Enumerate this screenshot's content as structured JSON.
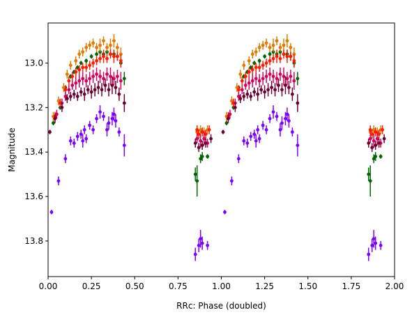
{
  "chart_data": {
    "type": "scatter",
    "title": "",
    "xlabel": "RRc: Phase (doubled)",
    "ylabel": "Magnitude",
    "xlim": [
      0.0,
      2.0
    ],
    "ylim": [
      13.96,
      12.82
    ],
    "y_inverted": true,
    "x_ticks": [
      0.0,
      0.25,
      0.5,
      0.75,
      1.0,
      1.25,
      1.5,
      1.75,
      2.0
    ],
    "x_tick_labels": [
      "0.00",
      "0.25",
      "0.50",
      "0.75",
      "1.00",
      "1.25",
      "1.50",
      "1.75",
      "2.00"
    ],
    "y_ticks": [
      13.0,
      13.2,
      13.4,
      13.6,
      13.8
    ],
    "y_tick_labels": [
      "13.0",
      "13.2",
      "13.4",
      "13.6",
      "13.8"
    ],
    "grid": false,
    "legend": false,
    "period_repeat": 1.0,
    "series": [
      {
        "color": "#7b00ff",
        "points": [
          [
            0.02,
            13.67,
            0.01
          ],
          [
            0.06,
            13.53,
            0.02
          ],
          [
            0.1,
            13.43,
            0.02
          ],
          [
            0.13,
            13.35,
            0.02
          ],
          [
            0.15,
            13.36,
            0.02
          ],
          [
            0.17,
            13.33,
            0.02
          ],
          [
            0.19,
            13.32,
            0.02
          ],
          [
            0.2,
            13.35,
            0.03
          ],
          [
            0.21,
            13.3,
            0.02
          ],
          [
            0.22,
            13.34,
            0.02
          ],
          [
            0.24,
            13.28,
            0.02
          ],
          [
            0.26,
            13.3,
            0.02
          ],
          [
            0.28,
            13.25,
            0.02
          ],
          [
            0.3,
            13.22,
            0.03
          ],
          [
            0.32,
            13.24,
            0.02
          ],
          [
            0.34,
            13.3,
            0.03
          ],
          [
            0.35,
            13.27,
            0.03
          ],
          [
            0.37,
            13.25,
            0.03
          ],
          [
            0.38,
            13.23,
            0.03
          ],
          [
            0.39,
            13.26,
            0.03
          ],
          [
            0.41,
            13.31,
            0.02
          ],
          [
            0.44,
            13.37,
            0.05
          ],
          [
            0.85,
            13.86,
            0.03
          ],
          [
            0.87,
            13.82,
            0.03
          ],
          [
            0.88,
            13.79,
            0.04
          ],
          [
            0.89,
            13.81,
            0.03
          ],
          [
            0.92,
            13.82,
            0.02
          ]
        ]
      },
      {
        "color": "#006400",
        "points": [
          [
            0.03,
            13.27,
            0.01
          ],
          [
            0.07,
            13.2,
            0.01
          ],
          [
            0.1,
            13.11,
            0.01
          ],
          [
            0.13,
            13.06,
            0.01
          ],
          [
            0.15,
            13.04,
            0.01
          ],
          [
            0.17,
            13.02,
            0.01
          ],
          [
            0.19,
            13.0,
            0.01
          ],
          [
            0.22,
            12.99,
            0.01
          ],
          [
            0.25,
            12.97,
            0.01
          ],
          [
            0.28,
            12.96,
            0.01
          ],
          [
            0.3,
            12.95,
            0.01
          ],
          [
            0.32,
            12.96,
            0.01
          ],
          [
            0.34,
            12.95,
            0.01
          ],
          [
            0.36,
            12.96,
            0.01
          ],
          [
            0.38,
            12.96,
            0.02
          ],
          [
            0.4,
            12.97,
            0.02
          ],
          [
            0.42,
            13.0,
            0.02
          ],
          [
            0.44,
            13.07,
            0.03
          ],
          [
            0.85,
            13.5,
            0.03
          ],
          [
            0.86,
            13.53,
            0.07
          ],
          [
            0.88,
            13.43,
            0.02
          ],
          [
            0.89,
            13.42,
            0.02
          ],
          [
            0.92,
            13.42,
            0.01
          ]
        ]
      },
      {
        "color": "#e07a00",
        "points": [
          [
            0.03,
            13.24,
            0.02
          ],
          [
            0.06,
            13.17,
            0.02
          ],
          [
            0.09,
            13.11,
            0.02
          ],
          [
            0.11,
            13.05,
            0.02
          ],
          [
            0.13,
            13.01,
            0.02
          ],
          [
            0.16,
            12.99,
            0.02
          ],
          [
            0.18,
            12.96,
            0.02
          ],
          [
            0.2,
            12.95,
            0.02
          ],
          [
            0.22,
            12.93,
            0.02
          ],
          [
            0.24,
            12.92,
            0.02
          ],
          [
            0.26,
            12.91,
            0.02
          ],
          [
            0.28,
            12.93,
            0.02
          ],
          [
            0.3,
            12.92,
            0.03
          ],
          [
            0.32,
            12.9,
            0.02
          ],
          [
            0.34,
            12.93,
            0.02
          ],
          [
            0.36,
            12.92,
            0.03
          ],
          [
            0.38,
            12.9,
            0.03
          ],
          [
            0.4,
            12.93,
            0.02
          ],
          [
            0.42,
            12.96,
            0.03
          ],
          [
            0.86,
            13.31,
            0.02
          ],
          [
            0.88,
            13.3,
            0.02
          ],
          [
            0.9,
            13.31,
            0.02
          ],
          [
            0.92,
            13.3,
            0.02
          ]
        ]
      },
      {
        "color": "#ff1a00",
        "points": [
          [
            0.04,
            13.24,
            0.02
          ],
          [
            0.07,
            13.18,
            0.02
          ],
          [
            0.1,
            13.12,
            0.02
          ],
          [
            0.12,
            13.08,
            0.02
          ],
          [
            0.14,
            13.06,
            0.02
          ],
          [
            0.16,
            13.04,
            0.02
          ],
          [
            0.18,
            13.03,
            0.02
          ],
          [
            0.2,
            13.02,
            0.02
          ],
          [
            0.22,
            13.02,
            0.02
          ],
          [
            0.24,
            13.01,
            0.02
          ],
          [
            0.26,
            13.0,
            0.02
          ],
          [
            0.28,
            12.99,
            0.02
          ],
          [
            0.3,
            12.98,
            0.02
          ],
          [
            0.32,
            12.97,
            0.03
          ],
          [
            0.34,
            12.98,
            0.02
          ],
          [
            0.36,
            12.96,
            0.02
          ],
          [
            0.38,
            12.97,
            0.03
          ],
          [
            0.4,
            12.97,
            0.02
          ],
          [
            0.42,
            12.99,
            0.03
          ],
          [
            0.86,
            13.3,
            0.02
          ],
          [
            0.87,
            13.32,
            0.02
          ],
          [
            0.89,
            13.31,
            0.02
          ],
          [
            0.91,
            13.32,
            0.02
          ],
          [
            0.93,
            13.3,
            0.02
          ]
        ]
      },
      {
        "color": "#d4005a",
        "points": [
          [
            0.05,
            13.23,
            0.02
          ],
          [
            0.08,
            13.18,
            0.02
          ],
          [
            0.1,
            13.15,
            0.02
          ],
          [
            0.12,
            13.12,
            0.02
          ],
          [
            0.14,
            13.1,
            0.02
          ],
          [
            0.16,
            13.09,
            0.03
          ],
          [
            0.18,
            13.08,
            0.03
          ],
          [
            0.2,
            13.07,
            0.03
          ],
          [
            0.22,
            13.08,
            0.03
          ],
          [
            0.24,
            13.07,
            0.03
          ],
          [
            0.26,
            13.06,
            0.03
          ],
          [
            0.28,
            13.05,
            0.03
          ],
          [
            0.3,
            13.06,
            0.03
          ],
          [
            0.32,
            13.07,
            0.03
          ],
          [
            0.34,
            13.05,
            0.03
          ],
          [
            0.36,
            13.06,
            0.04
          ],
          [
            0.38,
            13.07,
            0.03
          ],
          [
            0.4,
            13.06,
            0.03
          ],
          [
            0.42,
            13.08,
            0.04
          ],
          [
            0.86,
            13.34,
            0.02
          ],
          [
            0.88,
            13.35,
            0.03
          ],
          [
            0.9,
            13.34,
            0.03
          ],
          [
            0.92,
            13.36,
            0.02
          ]
        ]
      },
      {
        "color": "#6b0033",
        "points": [
          [
            0.01,
            13.31,
            0.01
          ],
          [
            0.04,
            13.25,
            0.02
          ],
          [
            0.08,
            13.2,
            0.02
          ],
          [
            0.11,
            13.16,
            0.02
          ],
          [
            0.13,
            13.15,
            0.02
          ],
          [
            0.15,
            13.14,
            0.02
          ],
          [
            0.17,
            13.15,
            0.02
          ],
          [
            0.19,
            13.13,
            0.02
          ],
          [
            0.21,
            13.14,
            0.03
          ],
          [
            0.23,
            13.12,
            0.02
          ],
          [
            0.25,
            13.13,
            0.03
          ],
          [
            0.27,
            13.12,
            0.03
          ],
          [
            0.29,
            13.11,
            0.03
          ],
          [
            0.31,
            13.12,
            0.03
          ],
          [
            0.33,
            13.1,
            0.03
          ],
          [
            0.35,
            13.12,
            0.03
          ],
          [
            0.37,
            13.1,
            0.04
          ],
          [
            0.39,
            13.11,
            0.03
          ],
          [
            0.41,
            13.14,
            0.03
          ],
          [
            0.44,
            13.18,
            0.04
          ],
          [
            0.85,
            13.36,
            0.02
          ],
          [
            0.87,
            13.38,
            0.02
          ],
          [
            0.89,
            13.37,
            0.02
          ],
          [
            0.91,
            13.36,
            0.02
          ],
          [
            0.94,
            13.34,
            0.02
          ]
        ]
      }
    ]
  }
}
